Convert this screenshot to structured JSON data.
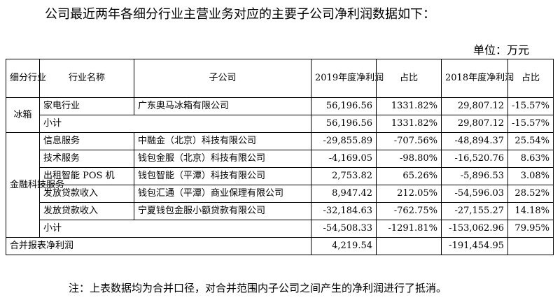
{
  "intro": "公司最近两年各细分行业主营业务对应的主要子公司净利润数据如下：",
  "unit": "单位：万元",
  "table": {
    "headers": {
      "segment": "细分行业",
      "industry": "行业名称",
      "subsidiary": "子公司",
      "np2019": "2019年度净利润",
      "ratio2019": "占比",
      "np2018": "2018年度净利润",
      "ratio2018": "占比"
    },
    "groups": [
      {
        "segment": "冰箱",
        "rows": [
          {
            "industry": "家电行业",
            "subsidiary": "广东奥马冰箱有限公司",
            "np2019": "56,196.56",
            "ratio2019": "1331.82%",
            "np2018": "29,807.12",
            "ratio2018": "-15.57%"
          }
        ],
        "subtotal": {
          "label": "小计",
          "np2019": "56,196.56",
          "ratio2019": "1331.82%",
          "np2018": "29,807.12",
          "ratio2018": "-15.57%"
        }
      },
      {
        "segment": "金融科技服务",
        "rows": [
          {
            "industry": "信息服务",
            "subsidiary": "中融金（北京）科技有限公司",
            "np2019": "-29,855.89",
            "ratio2019": "-707.56%",
            "np2018": "-48,894.37",
            "ratio2018": "25.54%"
          },
          {
            "industry": "技术服务",
            "subsidiary": "钱包金服（北京）科技有限公司",
            "np2019": "-4,169.05",
            "ratio2019": "-98.80%",
            "np2018": "-16,520.76",
            "ratio2018": "8.63%"
          },
          {
            "industry": "出租智能 POS 机",
            "subsidiary": "钱包智能（平潭）科技有限公司",
            "np2019": "2,753.82",
            "ratio2019": "65.26%",
            "np2018": "-5,896.53",
            "ratio2018": "3.08%"
          },
          {
            "industry": "发放贷款收入",
            "subsidiary": "钱包汇通（平潭）商业保理有限公司",
            "np2019": "8,947.42",
            "ratio2019": "212.05%",
            "np2018": "-54,596.03",
            "ratio2018": "28.52%"
          },
          {
            "industry": "发放贷款收入",
            "subsidiary": "宁夏钱包金服小额贷款有限公司",
            "np2019": "-32,184.63",
            "ratio2019": "-762.75%",
            "np2018": "-27,155.27",
            "ratio2018": "14.18%"
          }
        ],
        "subtotal": {
          "label": "小计",
          "np2019": "-54,508.33",
          "ratio2019": "-1291.81%",
          "np2018": "-153,062.96",
          "ratio2018": "79.95%"
        }
      }
    ],
    "total": {
      "label": "合并报表净利润",
      "np2019": "4,219.54",
      "np2018": "-191,454.95"
    }
  },
  "note": "注：上表数据均为合并口径，对合并范围内子公司之间产生的净利润进行了抵消。"
}
